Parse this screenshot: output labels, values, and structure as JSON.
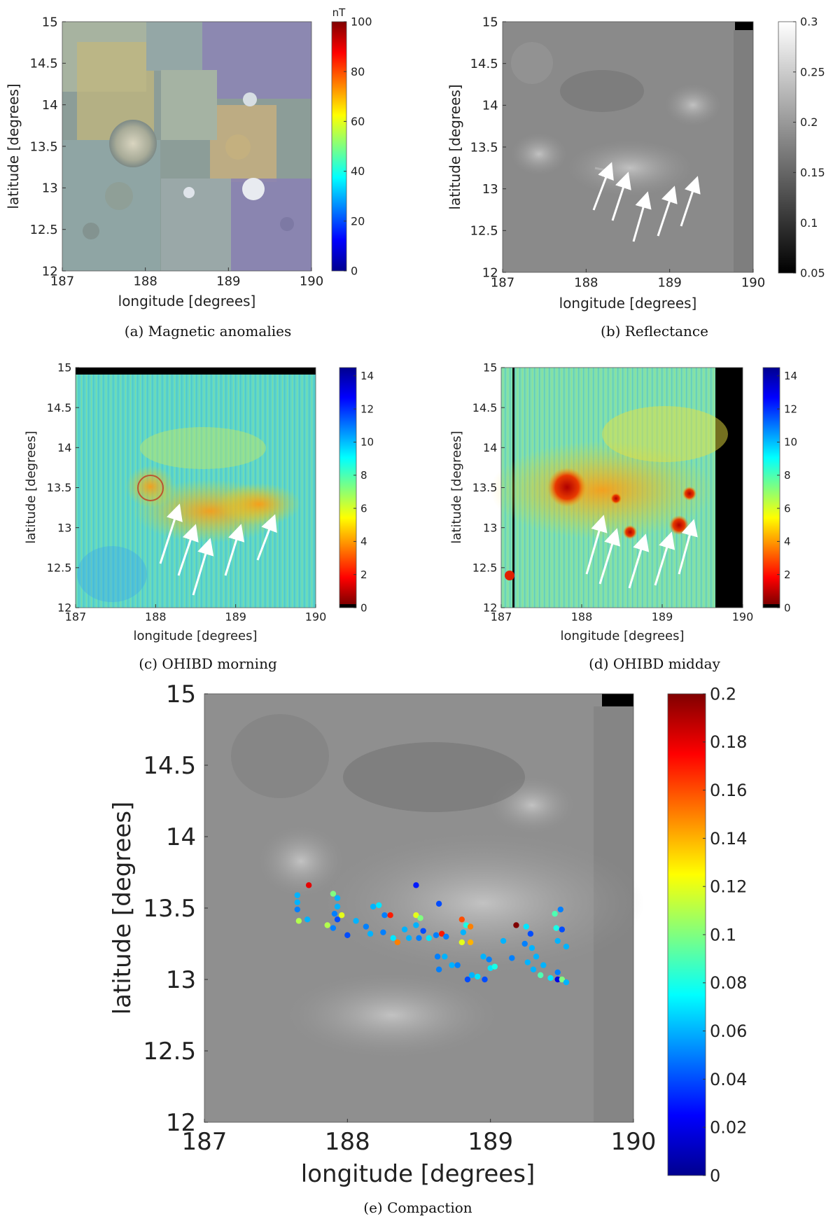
{
  "chart_data": [
    {
      "id": "a",
      "type": "heatmap",
      "caption": "(a) Magnetic anomalies",
      "xlabel": "longitude [degrees]",
      "ylabel": "latitude [degrees]",
      "xlim": [
        187,
        190
      ],
      "ylim": [
        12,
        15
      ],
      "x_ticks": [
        "187",
        "188",
        "189",
        "190"
      ],
      "y_ticks": [
        "12",
        "12.5",
        "13",
        "13.5",
        "14",
        "14.5",
        "15"
      ],
      "colorbar": {
        "title": "nT",
        "colormap": "jet",
        "range": [
          0,
          100
        ],
        "ticks": [
          "0",
          "20",
          "40",
          "60",
          "80",
          "100"
        ]
      }
    },
    {
      "id": "b",
      "type": "heatmap",
      "caption": "(b) Reflectance",
      "xlabel": "longitude [degrees]",
      "ylabel": "latitude [degrees]",
      "xlim": [
        187,
        190
      ],
      "ylim": [
        12,
        15
      ],
      "x_ticks": [
        "187",
        "188",
        "189",
        "190"
      ],
      "y_ticks": [
        "12",
        "12.5",
        "13",
        "13.5",
        "14",
        "14.5",
        "15"
      ],
      "colorbar": {
        "colormap": "gray",
        "range": [
          0.05,
          0.3
        ],
        "ticks": [
          "0.05",
          "0.1",
          "0.15",
          "0.2",
          "0.25",
          "0.3"
        ]
      },
      "annotations": "5 white arrows pointing to lat ~13.2"
    },
    {
      "id": "c",
      "type": "heatmap",
      "caption": "(c) OHIBD morning",
      "xlabel": "longitude [degrees]",
      "ylabel": "latitude [degrees]",
      "xlim": [
        187,
        190
      ],
      "ylim": [
        12,
        15
      ],
      "x_ticks": [
        "187",
        "188",
        "189",
        "190"
      ],
      "y_ticks": [
        "12",
        "12.5",
        "13",
        "13.5",
        "14",
        "14.5",
        "15"
      ],
      "colorbar": {
        "colormap": "jet_reversed",
        "range": [
          0,
          14.5
        ],
        "ticks": [
          "0",
          "2",
          "4",
          "6",
          "8",
          "10",
          "12",
          "14"
        ]
      }
    },
    {
      "id": "d",
      "type": "heatmap",
      "caption": "(d) OHIBD midday",
      "xlabel": "longitude [degrees]",
      "ylabel": "latitude [degrees]",
      "xlim": [
        187,
        190
      ],
      "ylim": [
        12,
        15
      ],
      "x_ticks": [
        "187",
        "188",
        "189",
        "190"
      ],
      "y_ticks": [
        "12",
        "12.5",
        "13",
        "13.5",
        "14",
        "14.5",
        "15"
      ],
      "colorbar": {
        "colormap": "jet_reversed",
        "range": [
          0,
          14.5
        ],
        "ticks": [
          "0",
          "2",
          "4",
          "6",
          "8",
          "10",
          "12",
          "14"
        ]
      }
    },
    {
      "id": "e",
      "type": "scatter",
      "caption": "(e) Compaction",
      "xlabel": "longitude [degrees]",
      "ylabel": "latitude [degrees]",
      "xlim": [
        187,
        190
      ],
      "ylim": [
        12,
        15
      ],
      "x_ticks": [
        "187",
        "188",
        "189",
        "190"
      ],
      "y_ticks": [
        "12",
        "12.5",
        "13",
        "13.5",
        "14",
        "14.5",
        "15"
      ],
      "colorbar": {
        "colormap": "jet",
        "range": [
          0,
          0.2
        ],
        "ticks": [
          "0",
          "0.02",
          "0.04",
          "0.06",
          "0.08",
          "0.1",
          "0.12",
          "0.14",
          "0.16",
          "0.18",
          "0.2"
        ]
      },
      "points": [
        [
          187.73,
          13.66,
          0.18
        ],
        [
          187.65,
          13.59,
          0.06
        ],
        [
          187.65,
          13.54,
          0.06
        ],
        [
          187.65,
          13.49,
          0.05
        ],
        [
          187.66,
          13.41,
          0.11
        ],
        [
          187.72,
          13.42,
          0.06
        ],
        [
          187.9,
          13.6,
          0.1
        ],
        [
          187.93,
          13.57,
          0.06
        ],
        [
          187.93,
          13.51,
          0.06
        ],
        [
          187.91,
          13.46,
          0.05
        ],
        [
          187.96,
          13.45,
          0.12
        ],
        [
          187.93,
          13.42,
          0.04
        ],
        [
          187.86,
          13.38,
          0.11
        ],
        [
          187.9,
          13.36,
          0.05
        ],
        [
          188.0,
          13.31,
          0.04
        ],
        [
          188.06,
          13.41,
          0.06
        ],
        [
          188.13,
          13.37,
          0.05
        ],
        [
          188.16,
          13.32,
          0.06
        ],
        [
          188.18,
          13.51,
          0.06
        ],
        [
          188.22,
          13.52,
          0.07
        ],
        [
          188.26,
          13.45,
          0.05
        ],
        [
          188.3,
          13.45,
          0.17
        ],
        [
          188.25,
          13.33,
          0.05
        ],
        [
          188.32,
          13.29,
          0.07
        ],
        [
          188.35,
          13.26,
          0.15
        ],
        [
          188.4,
          13.35,
          0.06
        ],
        [
          188.48,
          13.66,
          0.03
        ],
        [
          188.48,
          13.45,
          0.12
        ],
        [
          188.51,
          13.43,
          0.1
        ],
        [
          188.48,
          13.38,
          0.06
        ],
        [
          188.53,
          13.34,
          0.04
        ],
        [
          188.5,
          13.29,
          0.05
        ],
        [
          188.57,
          13.29,
          0.07
        ],
        [
          188.64,
          13.53,
          0.04
        ],
        [
          188.62,
          13.31,
          0.05
        ],
        [
          188.66,
          13.32,
          0.17
        ],
        [
          188.69,
          13.3,
          0.05
        ],
        [
          188.63,
          13.16,
          0.05
        ],
        [
          188.68,
          13.16,
          0.06
        ],
        [
          188.64,
          13.07,
          0.05
        ],
        [
          188.73,
          13.1,
          0.06
        ],
        [
          188.77,
          13.1,
          0.05
        ],
        [
          188.8,
          13.42,
          0.16
        ],
        [
          188.83,
          13.38,
          0.08
        ],
        [
          188.86,
          13.37,
          0.15
        ],
        [
          188.81,
          13.33,
          0.06
        ],
        [
          188.8,
          13.26,
          0.12
        ],
        [
          188.86,
          13.26,
          0.14
        ],
        [
          188.84,
          13.0,
          0.04
        ],
        [
          188.87,
          13.03,
          0.06
        ],
        [
          188.91,
          13.02,
          0.07
        ],
        [
          188.95,
          13.16,
          0.06
        ],
        [
          188.99,
          13.14,
          0.05
        ],
        [
          189.0,
          13.08,
          0.07
        ],
        [
          188.96,
          13.0,
          0.04
        ],
        [
          189.03,
          13.09,
          0.08
        ],
        [
          189.18,
          13.38,
          0.2
        ],
        [
          189.25,
          13.37,
          0.07
        ],
        [
          189.28,
          13.32,
          0.04
        ],
        [
          189.24,
          13.25,
          0.05
        ],
        [
          189.29,
          13.22,
          0.06
        ],
        [
          189.26,
          13.12,
          0.06
        ],
        [
          189.32,
          13.16,
          0.06
        ],
        [
          189.3,
          13.07,
          0.06
        ],
        [
          189.37,
          13.1,
          0.06
        ],
        [
          189.35,
          13.03,
          0.09
        ],
        [
          189.42,
          13.01,
          0.07
        ],
        [
          189.45,
          13.46,
          0.09
        ],
        [
          189.49,
          13.49,
          0.05
        ],
        [
          189.46,
          13.36,
          0.08
        ],
        [
          189.5,
          13.35,
          0.04
        ],
        [
          189.47,
          13.27,
          0.06
        ],
        [
          189.53,
          13.23,
          0.06
        ],
        [
          189.47,
          13.05,
          0.05
        ],
        [
          189.47,
          13.0,
          0.02
        ],
        [
          189.5,
          13.0,
          0.1
        ],
        [
          189.53,
          12.98,
          0.06
        ],
        [
          189.15,
          13.15,
          0.05
        ],
        [
          189.09,
          13.27,
          0.06
        ],
        [
          188.43,
          13.29,
          0.06
        ]
      ]
    }
  ]
}
